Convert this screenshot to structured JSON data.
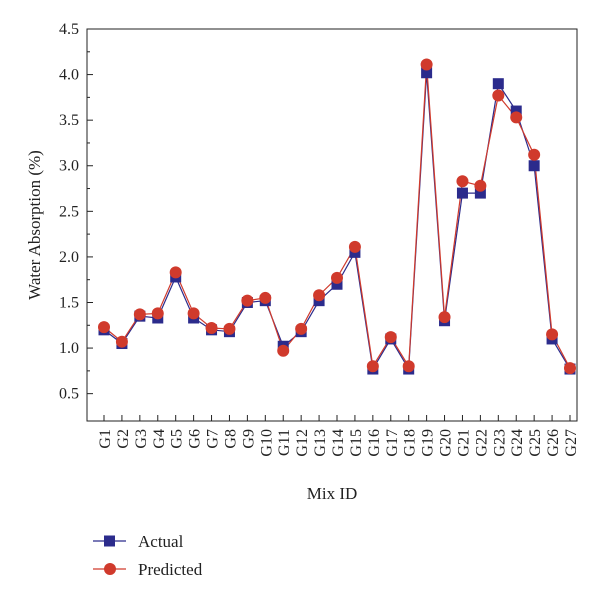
{
  "chart_data": {
    "type": "line",
    "title": "",
    "xlabel": "Mix ID",
    "ylabel": "Water Absorption (%)",
    "ylim": [
      0.2,
      4.5
    ],
    "yticks": [
      0.5,
      1.0,
      1.5,
      2.0,
      2.5,
      3.0,
      3.5,
      4.0,
      4.5
    ],
    "ytick_labels": [
      "0.5",
      "1.0",
      "1.5",
      "2.0",
      "2.5",
      "3.0",
      "3.5",
      "4.0",
      "4.5"
    ],
    "categories": [
      "G1",
      "G2",
      "G3",
      "G4",
      "G5",
      "G6",
      "G7",
      "G8",
      "G9",
      "G10",
      "G11",
      "G12",
      "G13",
      "G14",
      "G15",
      "G16",
      "G17",
      "G18",
      "G19",
      "G20",
      "G21",
      "G22",
      "G23",
      "G24",
      "G25",
      "G26",
      "G27"
    ],
    "legend_position": "bottom-left",
    "grid": false,
    "series": [
      {
        "name": "Actual",
        "marker": "square",
        "color": "#2b2b8c",
        "values": [
          1.2,
          1.05,
          1.35,
          1.33,
          1.78,
          1.33,
          1.2,
          1.18,
          1.5,
          1.52,
          1.02,
          1.18,
          1.52,
          1.7,
          2.05,
          0.77,
          1.1,
          0.77,
          4.02,
          1.3,
          2.7,
          2.7,
          3.9,
          3.6,
          3.0,
          1.1,
          0.77
        ]
      },
      {
        "name": "Predicted",
        "marker": "circle",
        "color": "#d03a2c",
        "values": [
          1.23,
          1.07,
          1.37,
          1.38,
          1.83,
          1.38,
          1.22,
          1.21,
          1.52,
          1.55,
          0.97,
          1.21,
          1.58,
          1.77,
          2.11,
          0.8,
          1.12,
          0.8,
          4.11,
          1.34,
          2.83,
          2.78,
          3.77,
          3.53,
          3.12,
          1.15,
          0.78
        ]
      }
    ]
  }
}
